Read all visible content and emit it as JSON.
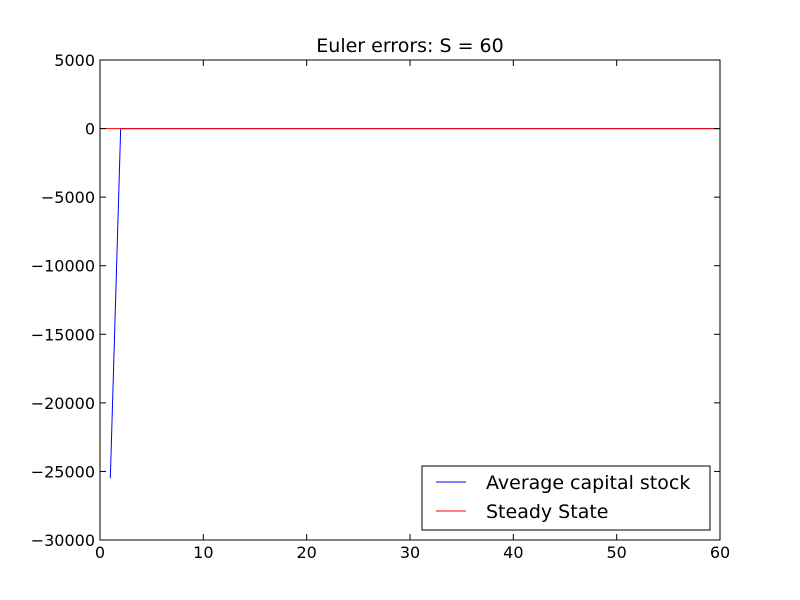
{
  "chart_data": {
    "type": "line",
    "title": "Euler errors: S = 60",
    "xlabel": "",
    "ylabel": "",
    "xlim": [
      0,
      60
    ],
    "ylim": [
      -30000,
      5000
    ],
    "x_ticks": [
      0,
      10,
      20,
      30,
      40,
      50,
      60
    ],
    "y_ticks": [
      5000,
      0,
      -5000,
      -10000,
      -15000,
      -20000,
      -25000,
      -30000
    ],
    "x_tick_labels": [
      "0",
      "10",
      "20",
      "30",
      "40",
      "50",
      "60"
    ],
    "y_tick_labels": [
      "5000",
      "0",
      "−5000",
      "−10000",
      "−15000",
      "−20000",
      "−25000",
      "−30000"
    ],
    "grid": false,
    "legend_position": "lower-right",
    "series": [
      {
        "name": "Average capital stock",
        "color": "#0000ff",
        "points": [
          [
            1,
            -25500
          ],
          [
            2,
            0
          ],
          [
            3,
            0
          ],
          [
            10,
            0
          ],
          [
            20,
            0
          ],
          [
            30,
            0
          ],
          [
            40,
            0
          ],
          [
            50,
            0
          ],
          [
            60,
            0
          ]
        ]
      },
      {
        "name": "Steady State",
        "color": "#ff0000",
        "points": [
          [
            0,
            0
          ],
          [
            60,
            0
          ]
        ]
      }
    ]
  }
}
